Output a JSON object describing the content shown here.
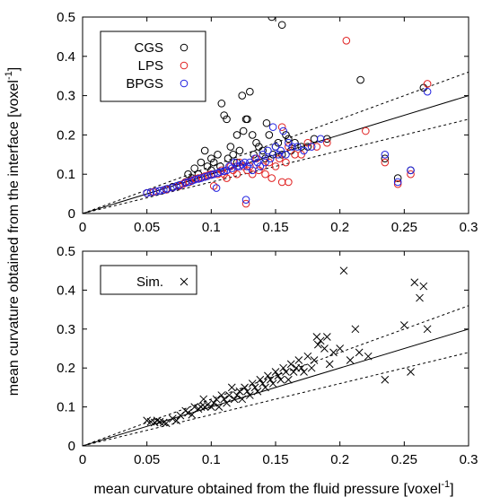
{
  "ylabel": "mean curvature obtained from the interface [voxel",
  "ylabel_sup": "-1",
  "ylabel_end": "]",
  "xlabel": "mean curvature obtained from the fluid pressure [voxel",
  "xlabel_sup": "-1",
  "xlabel_end": "]",
  "colors": {
    "CGS": "#000000",
    "LPS": "#e02020",
    "BPGS": "#2020e0",
    "Sim.": "#000000",
    "line": "#000000"
  },
  "chart_data": [
    {
      "type": "scatter",
      "panel": "top",
      "xlim": [
        0,
        0.3
      ],
      "ylim": [
        0,
        0.5
      ],
      "xticks": [
        "0",
        "0.05",
        "0.1",
        "0.15",
        "0.2",
        "0.25",
        "0.3"
      ],
      "yticks": [
        "0",
        "0.1",
        "0.2",
        "0.3",
        "0.4",
        "0.5"
      ],
      "xtick_values": [
        0,
        0.05,
        0.1,
        0.15,
        0.2,
        0.25,
        0.3
      ],
      "ytick_values": [
        0,
        0.1,
        0.2,
        0.3,
        0.4,
        0.5
      ],
      "legend_position": "top-left",
      "reference_lines": [
        {
          "style": "solid",
          "slope": 1.0
        },
        {
          "style": "dashed",
          "slope": 1.2
        },
        {
          "style": "dashed",
          "slope": 0.8
        }
      ],
      "series": [
        {
          "name": "CGS",
          "marker": "circle",
          "points": [
            [
              0.05,
              0.052
            ],
            [
              0.055,
              0.055
            ],
            [
              0.06,
              0.058
            ],
            [
              0.065,
              0.062
            ],
            [
              0.07,
              0.068
            ],
            [
              0.075,
              0.072
            ],
            [
              0.08,
              0.08
            ],
            [
              0.082,
              0.1
            ],
            [
              0.085,
              0.09
            ],
            [
              0.087,
              0.115
            ],
            [
              0.09,
              0.1
            ],
            [
              0.092,
              0.13
            ],
            [
              0.095,
              0.16
            ],
            [
              0.097,
              0.12
            ],
            [
              0.1,
              0.14
            ],
            [
              0.1,
              0.11
            ],
            [
              0.102,
              0.13
            ],
            [
              0.105,
              0.15
            ],
            [
              0.107,
              0.12
            ],
            [
              0.108,
              0.28
            ],
            [
              0.11,
              0.25
            ],
            [
              0.112,
              0.24
            ],
            [
              0.113,
              0.14
            ],
            [
              0.115,
              0.17
            ],
            [
              0.117,
              0.15
            ],
            [
              0.12,
              0.13
            ],
            [
              0.12,
              0.2
            ],
            [
              0.122,
              0.16
            ],
            [
              0.124,
              0.3
            ],
            [
              0.125,
              0.21
            ],
            [
              0.127,
              0.24
            ],
            [
              0.128,
              0.24
            ],
            [
              0.13,
              0.31
            ],
            [
              0.132,
              0.2
            ],
            [
              0.133,
              0.15
            ],
            [
              0.135,
              0.18
            ],
            [
              0.137,
              0.17
            ],
            [
              0.14,
              0.16
            ],
            [
              0.142,
              0.14
            ],
            [
              0.143,
              0.23
            ],
            [
              0.145,
              0.2
            ],
            [
              0.147,
              0.5
            ],
            [
              0.148,
              0.15
            ],
            [
              0.15,
              0.17
            ],
            [
              0.152,
              0.18
            ],
            [
              0.155,
              0.48
            ],
            [
              0.155,
              0.15
            ],
            [
              0.158,
              0.2
            ],
            [
              0.16,
              0.19
            ],
            [
              0.162,
              0.16
            ],
            [
              0.165,
              0.18
            ],
            [
              0.17,
              0.17
            ],
            [
              0.175,
              0.17
            ],
            [
              0.18,
              0.19
            ],
            [
              0.19,
              0.19
            ],
            [
              0.216,
              0.34
            ],
            [
              0.235,
              0.14
            ],
            [
              0.245,
              0.09
            ],
            [
              0.255,
              0.11
            ],
            [
              0.265,
              0.32
            ]
          ]
        },
        {
          "name": "LPS",
          "marker": "circle",
          "points": [
            [
              0.05,
              0.052
            ],
            [
              0.055,
              0.055
            ],
            [
              0.06,
              0.058
            ],
            [
              0.065,
              0.061
            ],
            [
              0.07,
              0.066
            ],
            [
              0.075,
              0.07
            ],
            [
              0.078,
              0.075
            ],
            [
              0.08,
              0.08
            ],
            [
              0.083,
              0.08
            ],
            [
              0.085,
              0.085
            ],
            [
              0.088,
              0.088
            ],
            [
              0.09,
              0.09
            ],
            [
              0.093,
              0.092
            ],
            [
              0.095,
              0.095
            ],
            [
              0.098,
              0.098
            ],
            [
              0.1,
              0.1
            ],
            [
              0.102,
              0.07
            ],
            [
              0.105,
              0.1
            ],
            [
              0.108,
              0.11
            ],
            [
              0.11,
              0.1
            ],
            [
              0.112,
              0.09
            ],
            [
              0.115,
              0.12
            ],
            [
              0.117,
              0.11
            ],
            [
              0.12,
              0.1
            ],
            [
              0.122,
              0.13
            ],
            [
              0.125,
              0.12
            ],
            [
              0.127,
              0.025
            ],
            [
              0.128,
              0.11
            ],
            [
              0.13,
              0.12
            ],
            [
              0.132,
              0.1
            ],
            [
              0.135,
              0.14
            ],
            [
              0.137,
              0.11
            ],
            [
              0.14,
              0.12
            ],
            [
              0.142,
              0.1
            ],
            [
              0.145,
              0.13
            ],
            [
              0.147,
              0.09
            ],
            [
              0.15,
              0.12
            ],
            [
              0.153,
              0.14
            ],
            [
              0.155,
              0.22
            ],
            [
              0.155,
              0.08
            ],
            [
              0.158,
              0.13
            ],
            [
              0.16,
              0.08
            ],
            [
              0.16,
              0.17
            ],
            [
              0.165,
              0.15
            ],
            [
              0.17,
              0.15
            ],
            [
              0.175,
              0.18
            ],
            [
              0.182,
              0.17
            ],
            [
              0.19,
              0.18
            ],
            [
              0.205,
              0.44
            ],
            [
              0.22,
              0.21
            ],
            [
              0.235,
              0.13
            ],
            [
              0.245,
              0.075
            ],
            [
              0.255,
              0.1
            ],
            [
              0.268,
              0.33
            ]
          ]
        },
        {
          "name": "BPGS",
          "marker": "circle",
          "points": [
            [
              0.05,
              0.052
            ],
            [
              0.053,
              0.054
            ],
            [
              0.057,
              0.056
            ],
            [
              0.06,
              0.058
            ],
            [
              0.063,
              0.06
            ],
            [
              0.066,
              0.063
            ],
            [
              0.07,
              0.066
            ],
            [
              0.073,
              0.07
            ],
            [
              0.076,
              0.073
            ],
            [
              0.08,
              0.078
            ],
            [
              0.082,
              0.08
            ],
            [
              0.085,
              0.083
            ],
            [
              0.087,
              0.086
            ],
            [
              0.09,
              0.088
            ],
            [
              0.092,
              0.09
            ],
            [
              0.095,
              0.093
            ],
            [
              0.097,
              0.095
            ],
            [
              0.1,
              0.098
            ],
            [
              0.102,
              0.1
            ],
            [
              0.104,
              0.065
            ],
            [
              0.105,
              0.103
            ],
            [
              0.107,
              0.106
            ],
            [
              0.11,
              0.108
            ],
            [
              0.112,
              0.11
            ],
            [
              0.114,
              0.12
            ],
            [
              0.116,
              0.115
            ],
            [
              0.118,
              0.13
            ],
            [
              0.12,
              0.12
            ],
            [
              0.122,
              0.12
            ],
            [
              0.124,
              0.125
            ],
            [
              0.126,
              0.13
            ],
            [
              0.127,
              0.035
            ],
            [
              0.128,
              0.12
            ],
            [
              0.13,
              0.13
            ],
            [
              0.132,
              0.11
            ],
            [
              0.134,
              0.14
            ],
            [
              0.136,
              0.13
            ],
            [
              0.138,
              0.12
            ],
            [
              0.14,
              0.15
            ],
            [
              0.142,
              0.13
            ],
            [
              0.144,
              0.16
            ],
            [
              0.146,
              0.14
            ],
            [
              0.148,
              0.22
            ],
            [
              0.15,
              0.17
            ],
            [
              0.152,
              0.15
            ],
            [
              0.154,
              0.16
            ],
            [
              0.156,
              0.21
            ],
            [
              0.158,
              0.15
            ],
            [
              0.16,
              0.18
            ],
            [
              0.163,
              0.17
            ],
            [
              0.167,
              0.17
            ],
            [
              0.172,
              0.16
            ],
            [
              0.178,
              0.17
            ],
            [
              0.185,
              0.19
            ],
            [
              0.235,
              0.15
            ],
            [
              0.245,
              0.08
            ],
            [
              0.255,
              0.11
            ],
            [
              0.268,
              0.31
            ]
          ]
        }
      ]
    },
    {
      "type": "scatter",
      "panel": "bottom",
      "xlim": [
        0,
        0.3
      ],
      "ylim": [
        0,
        0.5
      ],
      "xticks": [
        "0",
        "0.05",
        "0.1",
        "0.15",
        "0.2",
        "0.25",
        "0.3"
      ],
      "yticks": [
        "0",
        "0.1",
        "0.2",
        "0.3",
        "0.4",
        "0.5"
      ],
      "xtick_values": [
        0,
        0.05,
        0.1,
        0.15,
        0.2,
        0.25,
        0.3
      ],
      "ytick_values": [
        0,
        0.1,
        0.2,
        0.3,
        0.4,
        0.5
      ],
      "legend_position": "top-left",
      "reference_lines": [
        {
          "style": "solid",
          "slope": 1.0
        },
        {
          "style": "dashed",
          "slope": 1.2
        },
        {
          "style": "dashed",
          "slope": 0.8
        }
      ],
      "series": [
        {
          "name": "Sim.",
          "marker": "x",
          "points": [
            [
              0.05,
              0.065
            ],
            [
              0.053,
              0.062
            ],
            [
              0.056,
              0.06
            ],
            [
              0.058,
              0.065
            ],
            [
              0.06,
              0.062
            ],
            [
              0.063,
              0.06
            ],
            [
              0.065,
              0.058
            ],
            [
              0.07,
              0.07
            ],
            [
              0.073,
              0.065
            ],
            [
              0.076,
              0.078
            ],
            [
              0.08,
              0.09
            ],
            [
              0.082,
              0.085
            ],
            [
              0.085,
              0.08
            ],
            [
              0.087,
              0.1
            ],
            [
              0.09,
              0.095
            ],
            [
              0.092,
              0.1
            ],
            [
              0.094,
              0.12
            ],
            [
              0.095,
              0.1
            ],
            [
              0.097,
              0.105
            ],
            [
              0.1,
              0.1
            ],
            [
              0.102,
              0.11
            ],
            [
              0.104,
              0.12
            ],
            [
              0.106,
              0.1
            ],
            [
              0.108,
              0.13
            ],
            [
              0.11,
              0.12
            ],
            [
              0.112,
              0.11
            ],
            [
              0.114,
              0.13
            ],
            [
              0.116,
              0.15
            ],
            [
              0.118,
              0.12
            ],
            [
              0.12,
              0.13
            ],
            [
              0.122,
              0.14
            ],
            [
              0.124,
              0.12
            ],
            [
              0.126,
              0.15
            ],
            [
              0.128,
              0.14
            ],
            [
              0.13,
              0.13
            ],
            [
              0.132,
              0.16
            ],
            [
              0.134,
              0.15
            ],
            [
              0.136,
              0.14
            ],
            [
              0.138,
              0.17
            ],
            [
              0.14,
              0.16
            ],
            [
              0.142,
              0.15
            ],
            [
              0.144,
              0.18
            ],
            [
              0.146,
              0.17
            ],
            [
              0.148,
              0.16
            ],
            [
              0.15,
              0.19
            ],
            [
              0.152,
              0.18
            ],
            [
              0.154,
              0.17
            ],
            [
              0.156,
              0.2
            ],
            [
              0.158,
              0.19
            ],
            [
              0.16,
              0.17
            ],
            [
              0.162,
              0.21
            ],
            [
              0.164,
              0.19
            ],
            [
              0.166,
              0.2
            ],
            [
              0.168,
              0.22
            ],
            [
              0.17,
              0.2
            ],
            [
              0.172,
              0.19
            ],
            [
              0.175,
              0.23
            ],
            [
              0.178,
              0.2
            ],
            [
              0.18,
              0.22
            ],
            [
              0.182,
              0.28
            ],
            [
              0.183,
              0.26
            ],
            [
              0.185,
              0.27
            ],
            [
              0.188,
              0.25
            ],
            [
              0.19,
              0.28
            ],
            [
              0.192,
              0.21
            ],
            [
              0.195,
              0.24
            ],
            [
              0.2,
              0.25
            ],
            [
              0.203,
              0.45
            ],
            [
              0.208,
              0.22
            ],
            [
              0.212,
              0.3
            ],
            [
              0.215,
              0.24
            ],
            [
              0.222,
              0.23
            ],
            [
              0.235,
              0.17
            ],
            [
              0.25,
              0.31
            ],
            [
              0.255,
              0.19
            ],
            [
              0.258,
              0.42
            ],
            [
              0.262,
              0.38
            ],
            [
              0.265,
              0.41
            ],
            [
              0.268,
              0.3
            ]
          ]
        }
      ]
    }
  ]
}
